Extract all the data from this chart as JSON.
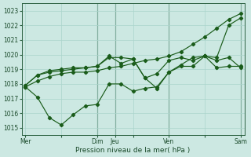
{
  "title": "Pression niveau de la mer( hPa )",
  "bg_color": "#cce8e2",
  "grid_color": "#aad4cc",
  "line_color": "#1a5c1a",
  "ylim": [
    1014.5,
    1023.5
  ],
  "yticks": [
    1015,
    1016,
    1017,
    1018,
    1019,
    1020,
    1021,
    1022,
    1023
  ],
  "xtick_labels": [
    "Mer",
    "",
    "Dim",
    "Jeu",
    "",
    "Ven",
    "",
    "Sam"
  ],
  "xtick_positions": [
    0,
    48,
    96,
    120,
    144,
    192,
    240,
    288
  ],
  "vlines_dark": [
    96,
    120,
    192,
    288
  ],
  "vlines_light": [
    0
  ],
  "line1_x": [
    0,
    16,
    32,
    48,
    64,
    80,
    96,
    112,
    128,
    144,
    160,
    176,
    192,
    208,
    224,
    240,
    256,
    272,
    288
  ],
  "line1_y": [
    1017.8,
    1018.2,
    1018.5,
    1018.7,
    1018.8,
    1018.8,
    1018.9,
    1019.1,
    1019.2,
    1019.4,
    1019.6,
    1019.7,
    1019.9,
    1020.2,
    1020.7,
    1021.2,
    1021.8,
    1022.4,
    1022.8
  ],
  "line2_x": [
    0,
    16,
    32,
    48,
    64,
    80,
    96,
    112,
    128,
    144,
    160,
    176,
    192,
    208,
    224,
    240,
    256,
    272,
    288
  ],
  "line2_y": [
    1017.9,
    1018.6,
    1018.8,
    1018.9,
    1019.0,
    1019.1,
    1019.2,
    1019.9,
    1019.4,
    1019.7,
    1018.4,
    1017.7,
    1018.8,
    1019.2,
    1019.2,
    1019.9,
    1019.1,
    1019.2,
    1019.2
  ],
  "line3_x": [
    0,
    16,
    32,
    48,
    64,
    80,
    96,
    112,
    128,
    144,
    160,
    176,
    192,
    208,
    224,
    240,
    256,
    272,
    288
  ],
  "line3_y": [
    1017.9,
    1018.6,
    1018.9,
    1019.0,
    1019.1,
    1019.1,
    1019.2,
    1019.8,
    1019.8,
    1019.7,
    1018.4,
    1018.7,
    1019.6,
    1019.8,
    1019.6,
    1019.9,
    1019.6,
    1019.8,
    1019.1
  ],
  "line4_x": [
    0,
    16,
    32,
    48,
    64,
    80,
    96,
    112,
    128,
    144,
    160,
    176,
    192,
    208,
    224,
    240,
    256,
    272,
    288
  ],
  "line4_y": [
    1017.8,
    1017.1,
    1015.7,
    1015.2,
    1015.9,
    1016.5,
    1016.6,
    1018.0,
    1018.0,
    1017.5,
    1017.7,
    1017.8,
    1018.8,
    1019.3,
    1019.8,
    1019.9,
    1019.8,
    1022.0,
    1022.5
  ]
}
